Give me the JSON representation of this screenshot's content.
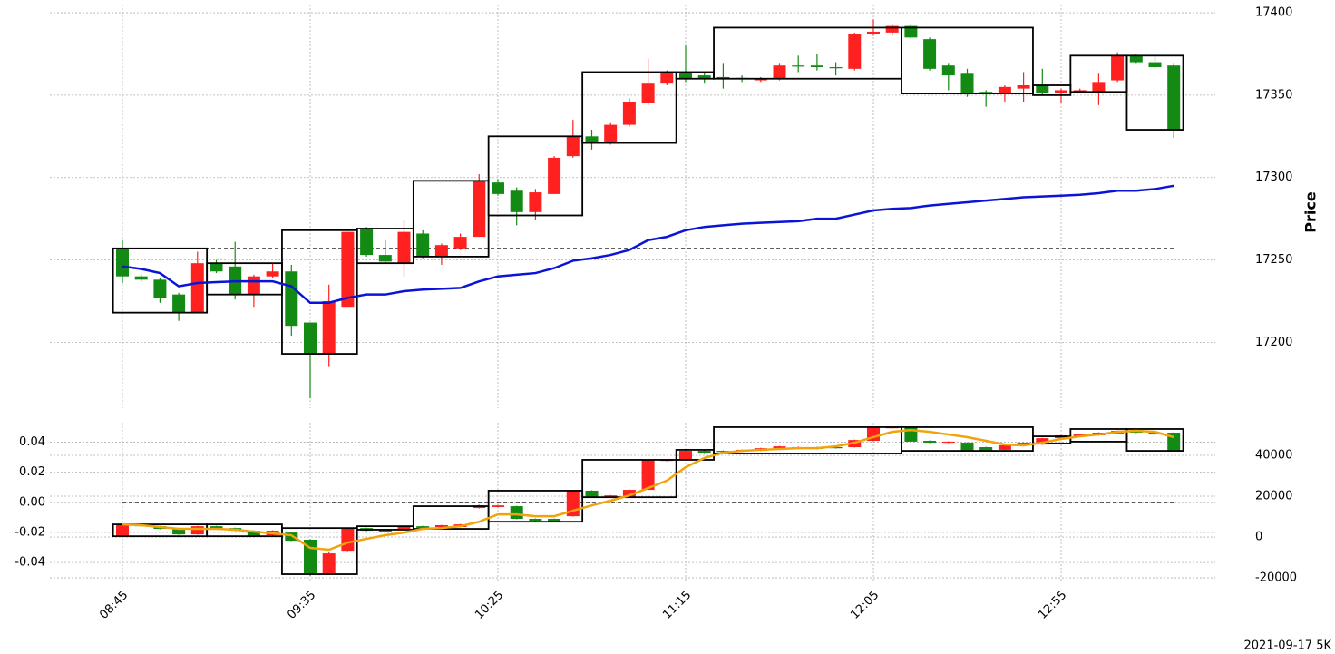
{
  "footer": "2021-09-17 5K",
  "chart_data": [
    {
      "type": "candlestick",
      "ylabel": "Price",
      "yaxis_side": "right",
      "grid": true,
      "ylim": [
        17160,
        17405
      ],
      "yticks": [
        17200,
        17250,
        17300,
        17350,
        17400
      ],
      "up_color": "#ff2020",
      "down_color": "#138a13",
      "open": [
        17257,
        17240,
        17238,
        17229,
        17218,
        17248,
        17246,
        17229,
        17240,
        17243,
        17212,
        17193,
        17221,
        17269,
        17253,
        17248,
        17266,
        17252,
        17257,
        17264,
        17297,
        17292,
        17279,
        17290,
        17313,
        17325,
        17321,
        17332,
        17345,
        17357,
        17364,
        17362,
        17361,
        17360.5,
        17359,
        17360,
        17368,
        17368,
        17367,
        17366,
        17387,
        17388,
        17392,
        17384,
        17368,
        17363,
        17352,
        17351,
        17354,
        17356,
        17351,
        17352,
        17351,
        17359,
        17374,
        17370,
        17368
      ],
      "high": [
        17262,
        17241,
        17239,
        17230,
        17255,
        17250,
        17261,
        17241,
        17248,
        17247,
        17212,
        17235,
        17267,
        17270,
        17262,
        17274,
        17268,
        17260,
        17266,
        17302,
        17299,
        17294,
        17293,
        17313,
        17335,
        17329,
        17333,
        17348,
        17372,
        17365,
        17380,
        17364,
        17369,
        17362,
        17361,
        17369,
        17374,
        17375,
        17370,
        17388,
        17396,
        17393,
        17393,
        17385,
        17369,
        17366,
        17353,
        17356,
        17364,
        17366,
        17354,
        17354,
        17363,
        17376,
        17375,
        17375,
        17369
      ],
      "low": [
        17236,
        17237,
        17224,
        17213,
        17218,
        17242,
        17226,
        17221,
        17239,
        17204,
        17166,
        17185,
        17221,
        17252,
        17248,
        17240,
        17251,
        17247,
        17256,
        17264,
        17289,
        17271,
        17274,
        17290,
        17312,
        17317,
        17320,
        17331,
        17344,
        17356,
        17358,
        17357,
        17354,
        17358,
        17358,
        17359,
        17364,
        17365,
        17362,
        17365,
        17386,
        17386,
        17384,
        17365,
        17353,
        17349,
        17343,
        17346,
        17346,
        17350,
        17345,
        17351,
        17344,
        17358,
        17369,
        17366,
        17324
      ],
      "close": [
        17240,
        17238,
        17227,
        17218,
        17248,
        17243,
        17229,
        17240,
        17243,
        17210,
        17193,
        17225,
        17267,
        17253,
        17249,
        17267,
        17252,
        17259,
        17264,
        17298,
        17290,
        17279,
        17291,
        17312,
        17325,
        17321,
        17332,
        17346,
        17357,
        17364,
        17360,
        17360,
        17360,
        17360,
        17360,
        17368,
        17367.5,
        17367,
        17366.5,
        17387,
        17388.5,
        17392,
        17385,
        17366,
        17362,
        17351,
        17351,
        17355,
        17356,
        17351,
        17353,
        17353,
        17358,
        17374,
        17370,
        17367,
        17329
      ],
      "lines": [
        {
          "color": "#0a14d6",
          "values": [
            17246,
            17244.5,
            17242,
            17234,
            17236,
            17236.5,
            17237,
            17237,
            17237,
            17234,
            17224,
            17224,
            17227,
            17229,
            17229,
            17231,
            17232,
            17232.5,
            17233,
            17237,
            17240,
            17241,
            17242,
            17245,
            17249.5,
            17251,
            17253,
            17256,
            17262,
            17264,
            17268,
            17270,
            17271,
            17272,
            17272.5,
            17273,
            17273.5,
            17275,
            17275,
            17277.5,
            17280,
            17281,
            17281.5,
            17283,
            17284,
            17285,
            17286,
            17287,
            17288,
            17288.5,
            17289,
            17289.5,
            17290.5,
            17292,
            17292,
            17293,
            17295
          ]
        }
      ],
      "hline": {
        "value": 17257
      },
      "boxes": [
        {
          "x0": 0,
          "x1": 4,
          "high": 17257,
          "low": 17218
        },
        {
          "x0": 5,
          "x1": 8,
          "high": 17248,
          "low": 17229
        },
        {
          "x0": 9,
          "x1": 12,
          "high": 17268,
          "low": 17193
        },
        {
          "x0": 13,
          "x1": 15,
          "high": 17269,
          "low": 17248
        },
        {
          "x0": 16,
          "x1": 19,
          "high": 17298,
          "low": 17252
        },
        {
          "x0": 20,
          "x1": 24,
          "high": 17325,
          "low": 17277
        },
        {
          "x0": 25,
          "x1": 29,
          "high": 17364,
          "low": 17321
        },
        {
          "x0": 30,
          "x1": 31,
          "high": 17364,
          "low": 17360
        },
        {
          "x0": 32,
          "x1": 41,
          "high": 17391,
          "low": 17360
        },
        {
          "x0": 42,
          "x1": 48,
          "high": 17391,
          "low": 17351
        },
        {
          "x0": 49,
          "x1": 50,
          "high": 17356,
          "low": 17350
        },
        {
          "x0": 51,
          "x1": 53,
          "high": 17374,
          "low": 17352
        },
        {
          "x0": 54,
          "x1": 56,
          "high": 17374,
          "low": 17329
        }
      ]
    },
    {
      "type": "candlestick",
      "candle_axis": "y2",
      "grid": true,
      "categories": [
        "08:45",
        null,
        null,
        null,
        null,
        null,
        null,
        null,
        null,
        null,
        "09:35",
        null,
        null,
        null,
        null,
        null,
        null,
        null,
        null,
        null,
        "10:25",
        null,
        null,
        null,
        null,
        null,
        null,
        null,
        null,
        null,
        "11:15",
        null,
        null,
        null,
        null,
        null,
        null,
        null,
        null,
        null,
        "12:05",
        null,
        null,
        null,
        null,
        null,
        null,
        null,
        null,
        null,
        "12:55",
        null,
        null,
        null,
        null,
        null,
        null
      ],
      "ylim": [
        -0.052,
        0.053
      ],
      "yticks": [
        -0.04,
        -0.02,
        {
          "value": 0,
          "label": "0.00"
        },
        0.02,
        0.04
      ],
      "y2lim": [
        -21300,
        56000
      ],
      "y2ticks": [
        -20000,
        0,
        20000,
        40000
      ],
      "up_color": "#ff2020",
      "down_color": "#138a13",
      "open": [
        400,
        6200,
        5300,
        4000,
        1300,
        5300,
        4400,
        3100,
        900,
        2200,
        -1300,
        -17800,
        -6700,
        4400,
        3600,
        3600,
        5300,
        4900,
        4900,
        14200,
        14700,
        15100,
        8900,
        8900,
        10200,
        22700,
        19500,
        19500,
        23100,
        37300,
        37800,
        42200,
        42200,
        41800,
        42200,
        43500,
        43500,
        44000,
        44000,
        44000,
        47100,
        53300,
        53800,
        47100,
        46200,
        46200,
        44000,
        42700,
        45300,
        45300,
        48400,
        49300,
        49800,
        50700,
        52000,
        51100,
        51100
      ],
      "high": [
        6500,
        6400,
        5500,
        4200,
        5500,
        5500,
        4600,
        3300,
        3300,
        2500,
        -1000,
        -7500,
        4600,
        4600,
        3800,
        5600,
        5500,
        6000,
        6400,
        15800,
        15800,
        15300,
        9100,
        9100,
        22900,
        22900,
        20600,
        23300,
        38000,
        38000,
        42500,
        42500,
        42400,
        42900,
        43700,
        44600,
        44300,
        44200,
        44200,
        47700,
        54000,
        54000,
        54000,
        47300,
        46900,
        46400,
        44200,
        45100,
        46400,
        48600,
        50000,
        50400,
        51300,
        52200,
        52200,
        51300,
        51300
      ],
      "low": [
        0,
        5100,
        3800,
        1100,
        1100,
        4200,
        2900,
        200,
        700,
        -2000,
        -19000,
        -18000,
        -6900,
        2900,
        2500,
        3400,
        4200,
        4700,
        4700,
        14000,
        14500,
        8700,
        7800,
        7300,
        10000,
        19300,
        19300,
        19300,
        22900,
        37100,
        37600,
        41100,
        41600,
        41600,
        42000,
        43300,
        43300,
        42900,
        43300,
        43800,
        46900,
        53100,
        46500,
        46000,
        46000,
        42000,
        42000,
        42500,
        45100,
        45100,
        48200,
        49100,
        49600,
        50500,
        50900,
        50000,
        42000
      ],
      "close": [
        6200,
        5300,
        4000,
        1300,
        5300,
        4400,
        3100,
        400,
        3100,
        -1800,
        -17800,
        -8000,
        4400,
        3100,
        2700,
        5300,
        4400,
        5800,
        6200,
        15500,
        15500,
        8900,
        8000,
        7500,
        22700,
        19500,
        20400,
        23100,
        37800,
        37800,
        42200,
        41300,
        41800,
        42700,
        43500,
        44400,
        44000,
        43100,
        43500,
        47500,
        53800,
        53800,
        46700,
        46200,
        46700,
        42200,
        42200,
        44900,
        46200,
        48400,
        49800,
        50200,
        51100,
        52000,
        51100,
        50200,
        42200
      ],
      "lines": [
        {
          "color": "#f0a30a",
          "axis": "y2",
          "values": [
            6200,
            5800,
            4900,
            4000,
            4000,
            4000,
            3600,
            2700,
            1800,
            900,
            -5300,
            -6200,
            -2700,
            -900,
            900,
            2200,
            4000,
            4400,
            5300,
            7500,
            11100,
            11100,
            10200,
            10200,
            12900,
            15500,
            17800,
            20400,
            24000,
            27600,
            34200,
            38700,
            41300,
            42200,
            42700,
            43100,
            43500,
            43500,
            44400,
            46200,
            48900,
            51500,
            52400,
            51500,
            50200,
            48900,
            47100,
            45300,
            44900,
            46200,
            48000,
            49300,
            50200,
            51500,
            52000,
            51500,
            48900
          ]
        }
      ],
      "hline": {
        "value": 0
      },
      "boxes": [
        {
          "x0": 0,
          "x1": 4,
          "high": 6200,
          "low": 400
        },
        {
          "x0": 5,
          "x1": 8,
          "high": 6200,
          "low": 400
        },
        {
          "x0": 9,
          "x1": 12,
          "high": 4400,
          "low": -18200
        },
        {
          "x0": 13,
          "x1": 15,
          "high": 5300,
          "low": 3600
        },
        {
          "x0": 16,
          "x1": 19,
          "high": 15100,
          "low": 4000
        },
        {
          "x0": 20,
          "x1": 24,
          "high": 22700,
          "low": 7500
        },
        {
          "x0": 25,
          "x1": 29,
          "high": 37800,
          "low": 19500
        },
        {
          "x0": 30,
          "x1": 31,
          "high": 42700,
          "low": 37800
        },
        {
          "x0": 32,
          "x1": 41,
          "high": 53800,
          "low": 40900
        },
        {
          "x0": 42,
          "x1": 48,
          "high": 53800,
          "low": 42200
        },
        {
          "x0": 49,
          "x1": 50,
          "high": 49300,
          "low": 45800
        },
        {
          "x0": 51,
          "x1": 53,
          "high": 52900,
          "low": 46700
        },
        {
          "x0": 54,
          "x1": 56,
          "high": 52900,
          "low": 42200
        }
      ]
    }
  ]
}
